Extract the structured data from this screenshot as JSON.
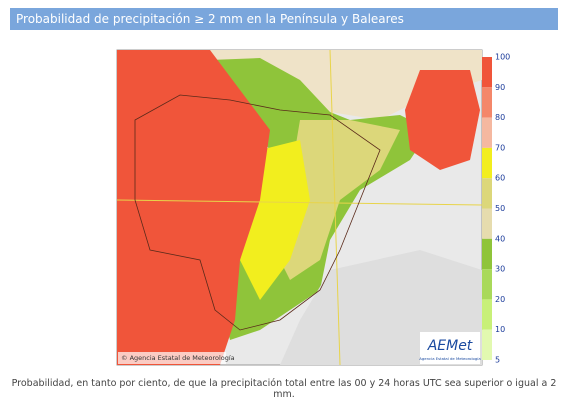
{
  "header": {
    "title": "Probabilidad de precipitación ≥ 2 mm en la Península y Baleares"
  },
  "map": {
    "credit": "© Agencia Estatal de Meteorología",
    "logo": "AEMet",
    "logo_subtitle": "Agencia Estatal de Meteorología"
  },
  "legend": {
    "ticks": [
      100,
      90,
      80,
      70,
      60,
      50,
      40,
      30,
      20,
      10,
      5
    ],
    "colors": [
      "#f0553a",
      "#f4876a",
      "#f5b8a0",
      "#f2ee1e",
      "#dcd77a",
      "#e6dcae",
      "#8fc43a",
      "#a9d95a",
      "#c8f078",
      "#e2f9b0"
    ]
  },
  "caption": "Probabilidad, en tanto por ciento, de que la precipitación total entre las 00 y 24 horas UTC sea superior o igual a 2 mm."
}
